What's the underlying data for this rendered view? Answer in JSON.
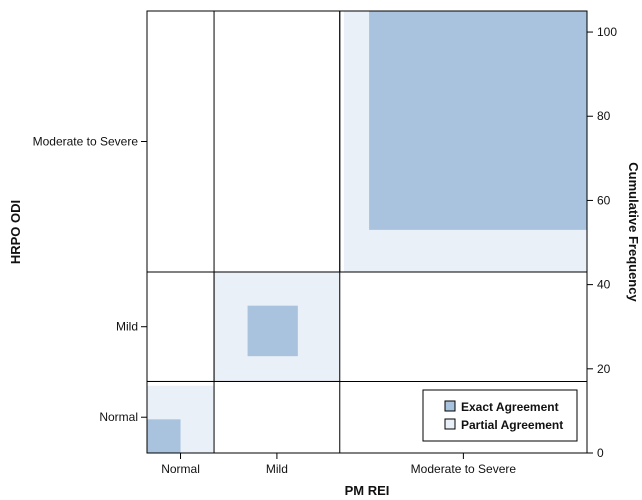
{
  "chart_data": {
    "type": "agreement",
    "title": "",
    "xlabel": "PM REI",
    "ylabel": "HRPO ODI",
    "y2label": "Cumulative Frequency",
    "categories": [
      "Normal",
      "Mild",
      "Moderate to Severe"
    ],
    "x_cumulative_bounds": [
      0,
      16,
      46,
      105
    ],
    "y_cumulative_bounds": [
      0,
      17,
      43,
      105
    ],
    "exact_agreement": [
      {
        "category": "Normal",
        "x": [
          0,
          8
        ],
        "y": [
          0,
          8
        ]
      },
      {
        "category": "Mild",
        "x": [
          24,
          36
        ],
        "y": [
          23,
          35
        ]
      },
      {
        "category": "Moderate to Severe",
        "x": [
          53,
          105
        ],
        "y": [
          53,
          105
        ]
      }
    ],
    "partial_agreement": [
      {
        "category": "Normal",
        "x": [
          0,
          16
        ],
        "y": [
          0,
          16
        ]
      },
      {
        "category": "Mild",
        "x": [
          16,
          46
        ],
        "y": [
          17,
          43
        ]
      },
      {
        "category": "Moderate to Severe",
        "x": [
          47,
          105
        ],
        "y": [
          43,
          105
        ]
      }
    ],
    "y2_ticks": [
      0,
      20,
      40,
      60,
      80,
      100
    ],
    "xlim": [
      0,
      105
    ],
    "ylim": [
      0,
      105
    ],
    "legend": {
      "position": "bottom-right",
      "entries": [
        {
          "label": "Exact Agreement",
          "color": "#a9c3df"
        },
        {
          "label": "Partial Agreement",
          "color": "#eaf0f8"
        }
      ]
    },
    "colors": {
      "exact": "#a9c3df",
      "partial": "#eaf0f8",
      "lines": "#000000"
    }
  }
}
